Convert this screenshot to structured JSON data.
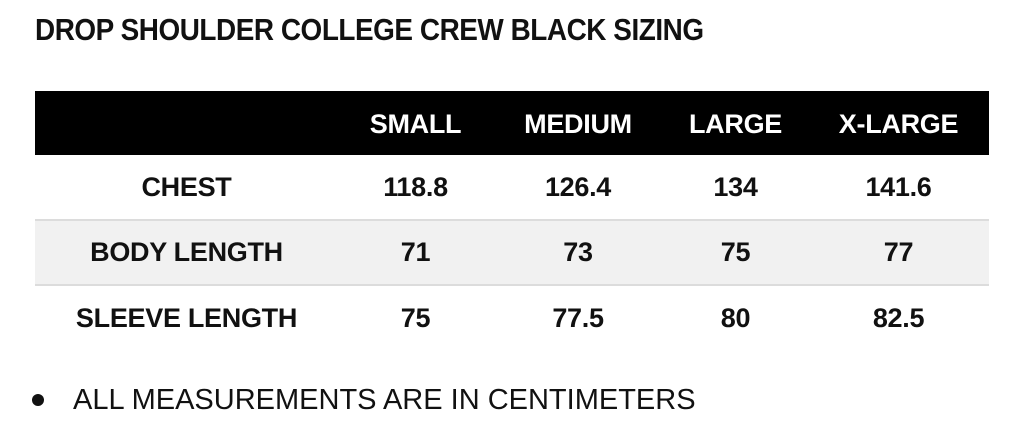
{
  "title": "DROP SHOULDER COLLEGE CREW BLACK SIZING",
  "table": {
    "header_blank": "",
    "sizes": [
      "SMALL",
      "MEDIUM",
      "LARGE",
      "X-LARGE"
    ],
    "rows": [
      {
        "label": "CHEST",
        "values": [
          "118.8",
          "126.4",
          "134",
          "141.6"
        ]
      },
      {
        "label": "BODY LENGTH",
        "values": [
          "71",
          "73",
          "75",
          "77"
        ]
      },
      {
        "label": "SLEEVE LENGTH",
        "values": [
          "75",
          "77.5",
          "80",
          "82.5"
        ]
      }
    ]
  },
  "notes": [
    "ALL MEASUREMENTS ARE IN CENTIMETERS"
  ],
  "colors": {
    "header_bg": "#000000",
    "header_text": "#ffffff",
    "shaded_row": "#f1f1f1"
  }
}
